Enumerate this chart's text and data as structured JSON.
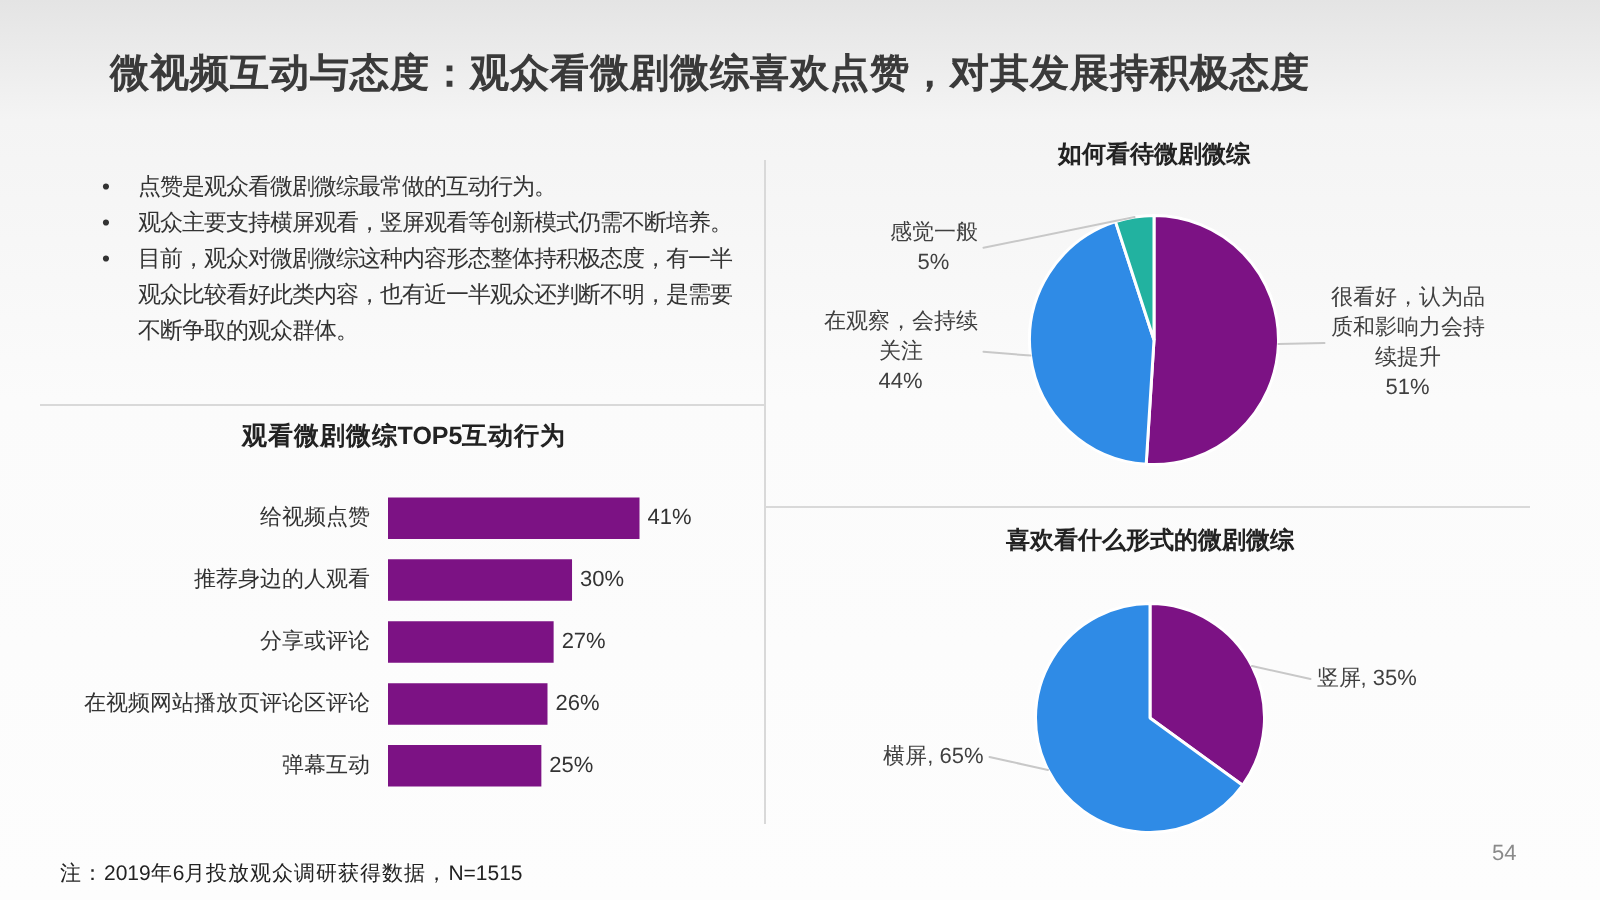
{
  "chart_data": [
    {
      "type": "other",
      "title": "微视频互动与态度：观众看微剧微综喜欢点赞，对其发展持积极态度",
      "annotations": [
        "• 点赞是观众看微剧微综最常做的互动行为。",
        "• 观众主要支持横屏观看，竖屏观看等创新模式仍需不断培养。",
        "• 目前，观众对微剧微综这种内容形态整体持积极态度，有一半观众比较看好此类内容，也有近一半观众还判断不明，是需要不断争取的观众群体。",
        "注：2019年6月投放观众调研获得数据，N=1515",
        "54"
      ]
    },
    {
      "type": "bar",
      "orientation": "horizontal",
      "title": "观看微剧微综TOP5互动行为",
      "categories": [
        "给视频点赞",
        "推荐身边的人观看",
        "分享或评论",
        "在视频网站播放页评论区评论",
        "弹幕互动"
      ],
      "values": [
        41,
        30,
        27,
        26,
        25
      ],
      "color": "#7c1284",
      "value_labels": [
        "41%",
        "30%",
        "27%",
        "26%",
        "25%"
      ],
      "tick_labels": "y"
    },
    {
      "type": "pie",
      "title": "如何看待微剧微综",
      "categories": [
        "很看好，认为品质和影响力会持续提升",
        "在观察，会持续关注",
        "感觉一般"
      ],
      "values": [
        51,
        44,
        5
      ],
      "colors": [
        "#7c1284",
        "#2f8be6",
        "#22b2a0"
      ],
      "value_labels": [
        "51%",
        "44%",
        "5%"
      ]
    },
    {
      "type": "pie",
      "title": "喜欢看什么形式的微剧微综",
      "categories": [
        "竖屏",
        "横屏"
      ],
      "values": [
        35,
        65
      ],
      "colors": [
        "#7c1284",
        "#2f8be6"
      ],
      "value_labels": [
        "35%",
        "65%"
      ]
    }
  ]
}
